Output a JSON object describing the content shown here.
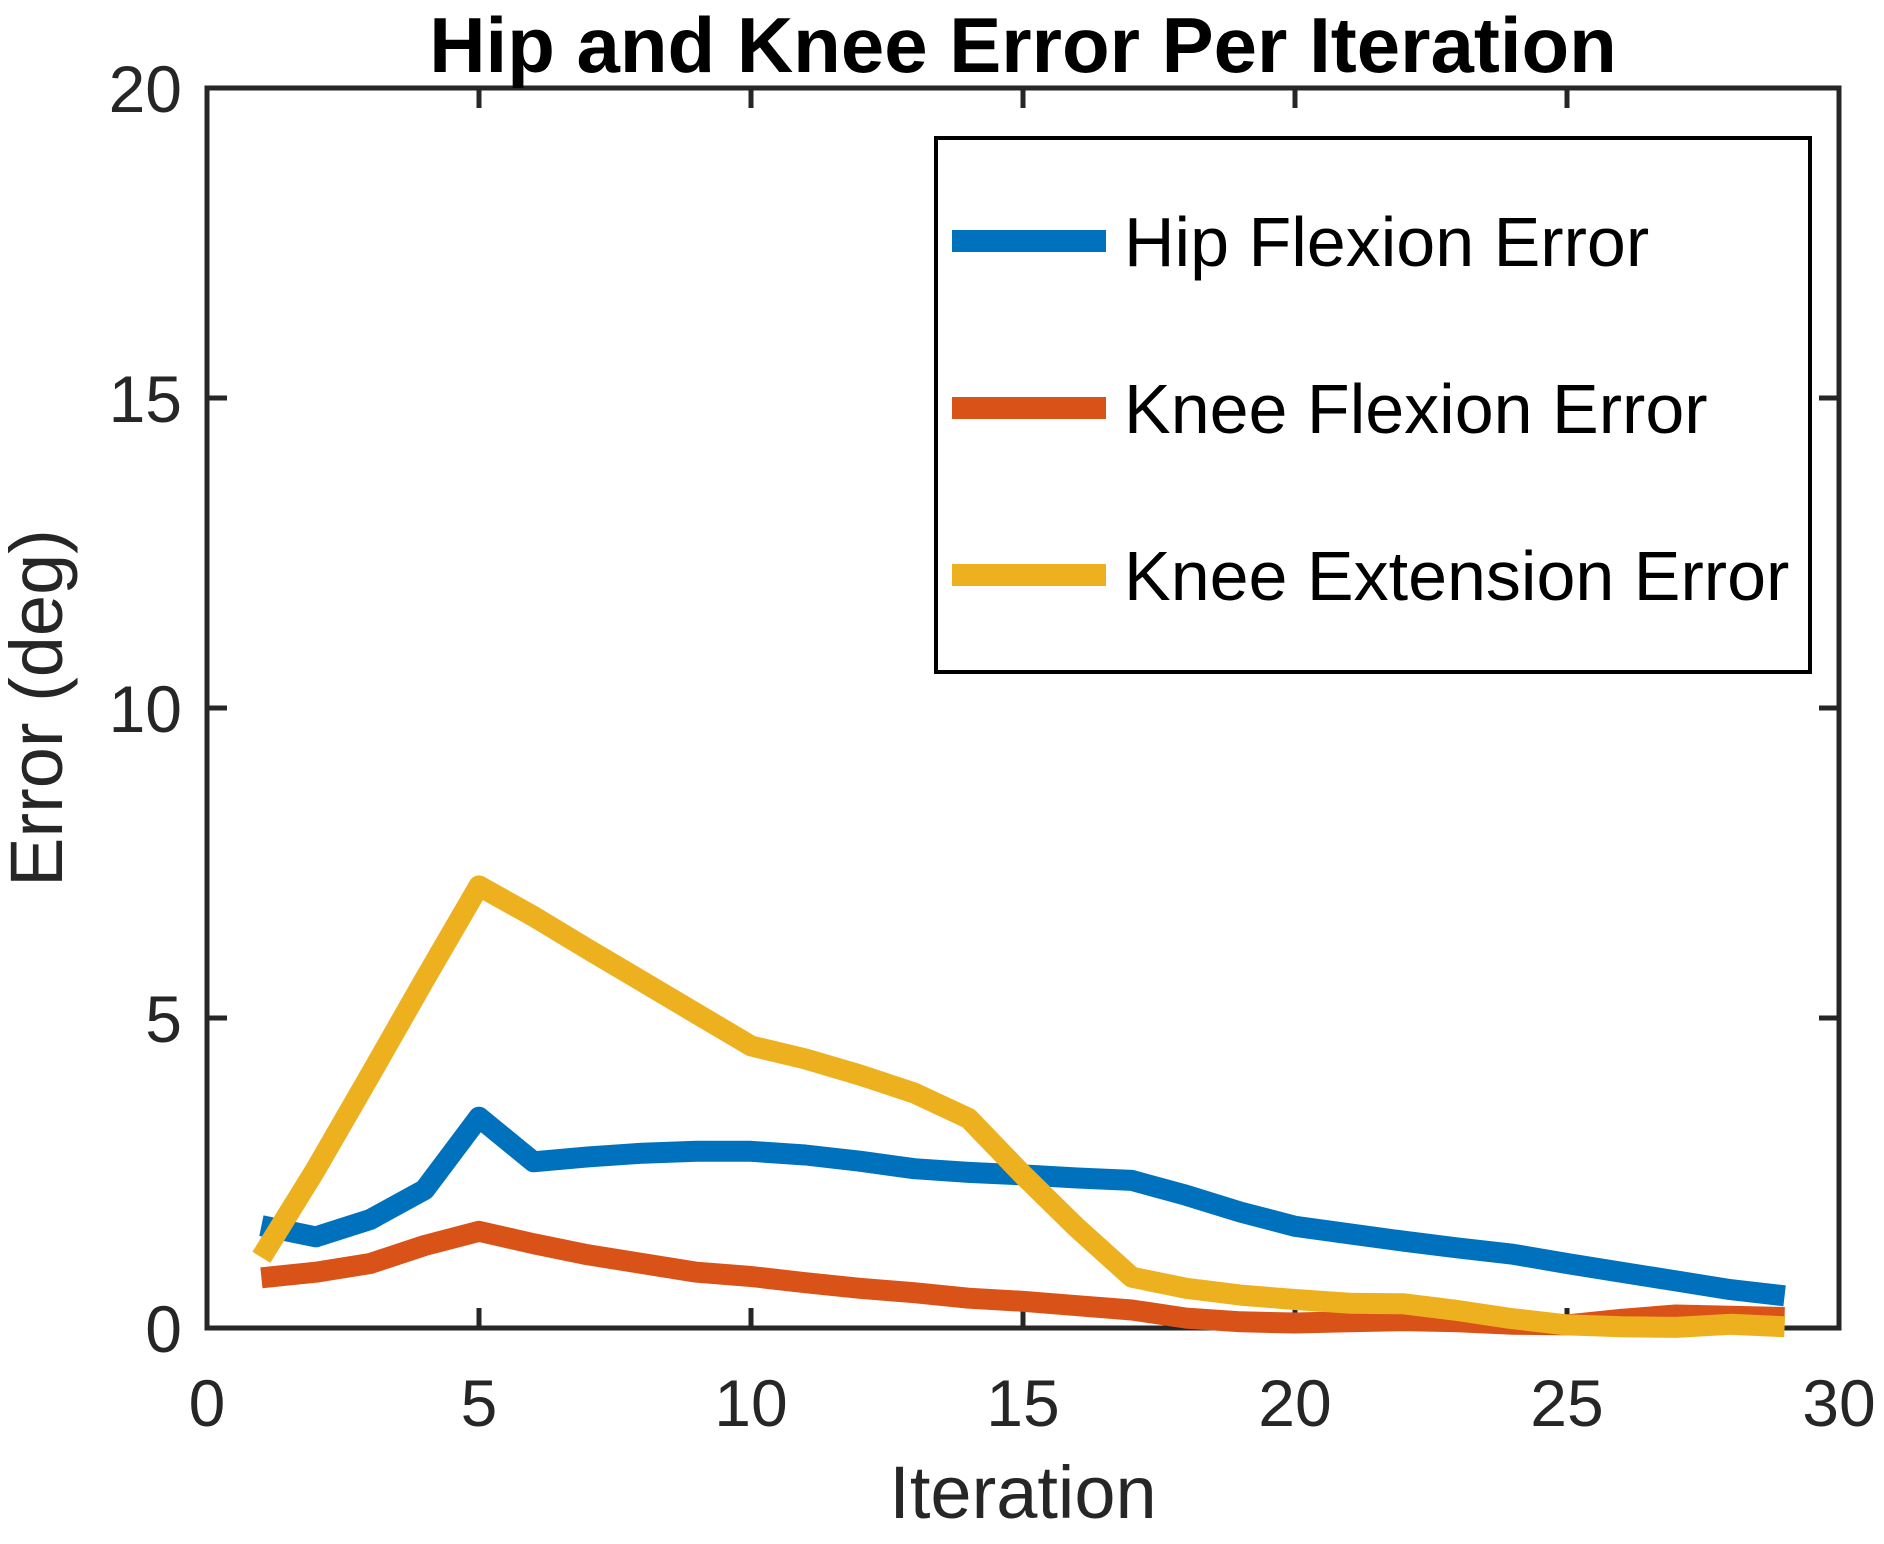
{
  "figure": {
    "background": "#ffffff",
    "axis_color": "#262626",
    "plot_border_on": true
  },
  "chart_data": {
    "type": "line",
    "title": "Hip and Knee Error Per Iteration",
    "xlabel": "Iteration",
    "ylabel": "Error (deg)",
    "xlim": [
      0,
      30
    ],
    "ylim": [
      0,
      20
    ],
    "x_ticks": [
      0,
      5,
      10,
      15,
      20,
      25,
      30
    ],
    "y_ticks": [
      0,
      5,
      10,
      15,
      20
    ],
    "grid": false,
    "legend_position": "top-right-inside",
    "x": [
      1,
      2,
      3,
      4,
      5,
      6,
      7,
      8,
      9,
      10,
      11,
      12,
      13,
      14,
      15,
      16,
      17,
      18,
      19,
      20,
      21,
      22,
      23,
      24,
      25,
      26,
      27,
      28,
      29
    ],
    "series": [
      {
        "name": "Hip Flexion Error",
        "color": "#0072BD",
        "values": [
          1.65,
          1.47,
          1.75,
          2.23,
          3.4,
          2.68,
          2.76,
          2.82,
          2.85,
          2.85,
          2.79,
          2.69,
          2.57,
          2.51,
          2.47,
          2.42,
          2.38,
          2.14,
          1.87,
          1.64,
          1.52,
          1.4,
          1.29,
          1.19,
          1.04,
          0.9,
          0.76,
          0.62,
          0.52
        ]
      },
      {
        "name": "Knee Flexion Error",
        "color": "#D95319",
        "values": [
          0.81,
          0.9,
          1.04,
          1.33,
          1.56,
          1.36,
          1.18,
          1.04,
          0.9,
          0.83,
          0.73,
          0.64,
          0.57,
          0.48,
          0.43,
          0.36,
          0.29,
          0.16,
          0.1,
          0.08,
          0.1,
          0.12,
          0.1,
          0.06,
          0.05,
          0.14,
          0.21,
          0.19,
          0.17
        ]
      },
      {
        "name": "Knee Extension Error",
        "color": "#EDB120",
        "values": [
          1.14,
          2.56,
          4.08,
          5.62,
          7.13,
          6.64,
          6.11,
          5.59,
          5.07,
          4.55,
          4.34,
          4.08,
          3.79,
          3.38,
          2.47,
          1.61,
          0.82,
          0.64,
          0.53,
          0.46,
          0.4,
          0.39,
          0.28,
          0.15,
          0.05,
          0.02,
          0.01,
          0.06,
          0.02
        ]
      }
    ]
  }
}
